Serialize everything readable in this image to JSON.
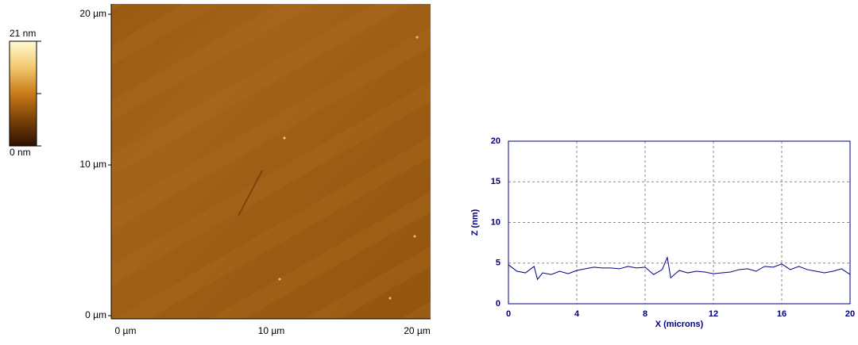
{
  "afm_image": {
    "colorbar_max_label": "21 nm",
    "colorbar_min_label": "0 nm",
    "y_labels": [
      "20 µm",
      "10 µm",
      "0 µm"
    ],
    "x_labels": [
      "0 µm",
      "10 µm",
      "20 µm"
    ]
  },
  "chart_data": {
    "type": "line",
    "x_label": "X (microns)",
    "y_label": "Z (nm)",
    "x": [
      0,
      0.5,
      1,
      1.5,
      1.7,
      2,
      2.5,
      3,
      3.5,
      4,
      4.5,
      5,
      5.5,
      6,
      6.5,
      7,
      7.5,
      8,
      8.5,
      9,
      9.3,
      9.5,
      10,
      10.5,
      11,
      11.5,
      12,
      12.5,
      13,
      13.5,
      14,
      14.5,
      15,
      15.5,
      16,
      16.5,
      17,
      17.5,
      18,
      18.5,
      19,
      19.5,
      20
    ],
    "values": [
      4.8,
      4.0,
      3.8,
      4.6,
      3.0,
      3.8,
      3.6,
      4.0,
      3.7,
      4.1,
      4.3,
      4.5,
      4.4,
      4.4,
      4.3,
      4.6,
      4.4,
      4.5,
      3.6,
      4.2,
      5.7,
      3.2,
      4.1,
      3.8,
      4.0,
      3.9,
      3.7,
      3.8,
      3.9,
      4.2,
      4.3,
      4.0,
      4.6,
      4.5,
      4.9,
      4.2,
      4.6,
      4.2,
      4.0,
      3.8,
      4.0,
      4.3,
      3.6
    ],
    "color": "#000080",
    "xlim": [
      0,
      20
    ],
    "ylim": [
      0,
      20
    ],
    "xticks": [
      0,
      4,
      8,
      12,
      16,
      20
    ],
    "yticks": [
      0,
      5,
      10,
      15,
      20
    ],
    "grid": true
  }
}
